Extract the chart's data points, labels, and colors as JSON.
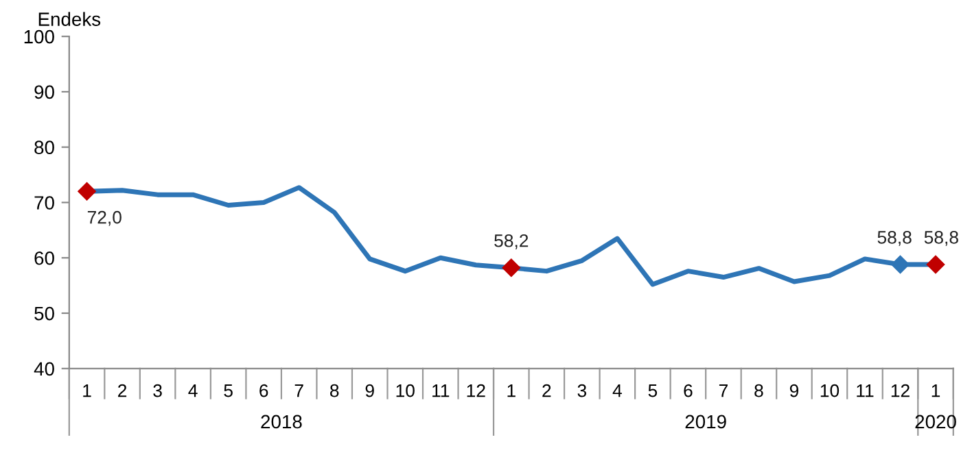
{
  "chart_data": {
    "type": "line",
    "ylabel": "Endeks",
    "categories": [
      "1",
      "2",
      "3",
      "4",
      "5",
      "6",
      "7",
      "8",
      "9",
      "10",
      "11",
      "12",
      "1",
      "2",
      "3",
      "4",
      "5",
      "6",
      "7",
      "8",
      "9",
      "10",
      "11",
      "12",
      "1"
    ],
    "series": [
      {
        "color": "#2e75b6",
        "values": [
          72.0,
          72.2,
          71.4,
          71.4,
          69.5,
          70.0,
          72.7,
          68.2,
          59.8,
          57.6,
          60.0,
          58.7,
          58.2,
          57.6,
          59.5,
          63.5,
          55.2,
          57.6,
          56.5,
          58.1,
          55.7,
          56.8,
          59.8,
          58.8,
          58.8
        ],
        "value_labels": [
          "72,0",
          null,
          null,
          null,
          null,
          null,
          null,
          null,
          null,
          null,
          null,
          null,
          "58,2",
          null,
          null,
          null,
          null,
          null,
          null,
          null,
          null,
          null,
          null,
          "58,8",
          "58,8"
        ],
        "colors": [
          "#c00000",
          null,
          null,
          null,
          null,
          null,
          null,
          null,
          null,
          null,
          null,
          null,
          "#c00000",
          null,
          null,
          null,
          null,
          null,
          null,
          null,
          null,
          null,
          null,
          "#2e75b6",
          "#c00000"
        ]
      }
    ],
    "annotations": [
      "2018",
      "2019",
      "2020"
    ],
    "ylim": [
      40,
      100
    ],
    "yticks": [
      40,
      50,
      60,
      70,
      80,
      90,
      100
    ],
    "grid": false,
    "legend": false,
    "line_style": "solid"
  }
}
